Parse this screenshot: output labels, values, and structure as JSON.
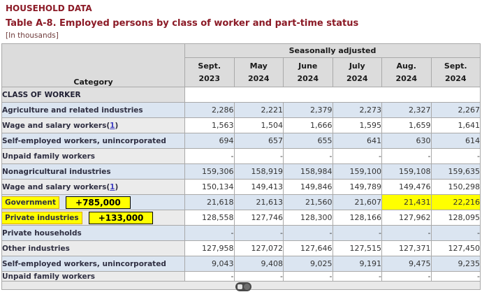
{
  "page": {
    "kicker": "HOUSEHOLD DATA",
    "title": "Table A-8. Employed persons by class of worker and part-time status",
    "units_note": "[In thousands]"
  },
  "colors": {
    "title_maroon": "#8b1a26",
    "highlight_yellow": "#ffff00",
    "row_blue": "#dbe5f1",
    "row_gray_label": "#ebebeb",
    "header_gray": "#dcdcdc",
    "annotation_border": "#000000",
    "footnote_link": "#4040c0",
    "cursor_pill": "#4a4a4a"
  },
  "table": {
    "header": {
      "category_label": "Category",
      "group_label": "Seasonally adjusted",
      "columns": [
        {
          "month": "Sept.",
          "year": "2023"
        },
        {
          "month": "May",
          "year": "2024"
        },
        {
          "month": "June",
          "year": "2024"
        },
        {
          "month": "July",
          "year": "2024"
        },
        {
          "month": "Aug.",
          "year": "2024"
        },
        {
          "month": "Sept.",
          "year": "2024"
        }
      ]
    },
    "rows": [
      {
        "type": "section",
        "label": "CLASS OF WORKER"
      },
      {
        "label": "Agriculture and related industries",
        "indent": 0,
        "shade": "blue",
        "values": [
          "2,286",
          "2,221",
          "2,379",
          "2,273",
          "2,327",
          "2,267"
        ]
      },
      {
        "label": "Wage and salary workers",
        "footnote": "1",
        "indent": 1,
        "shade": "plain",
        "values": [
          "1,563",
          "1,504",
          "1,666",
          "1,595",
          "1,659",
          "1,641"
        ]
      },
      {
        "label": "Self-employed workers, unincorporated",
        "indent": 1,
        "shade": "blue",
        "values": [
          "694",
          "657",
          "655",
          "641",
          "630",
          "614"
        ]
      },
      {
        "label": "Unpaid family workers",
        "indent": 1,
        "shade": "plain",
        "values": [
          "-",
          "-",
          "-",
          "-",
          "-",
          "-"
        ]
      },
      {
        "label": "Nonagricultural industries",
        "indent": 0,
        "shade": "blue",
        "values": [
          "159,306",
          "158,919",
          "158,984",
          "159,100",
          "159,108",
          "159,635"
        ]
      },
      {
        "label": "Wage and salary workers",
        "footnote": "1",
        "indent": 1,
        "shade": "plain",
        "values": [
          "150,134",
          "149,413",
          "149,846",
          "149,789",
          "149,476",
          "150,298"
        ]
      },
      {
        "label": "Government",
        "indent": 2,
        "shade": "blue",
        "label_highlighted": true,
        "annotation": "+785,000",
        "highlight_cols": [
          4,
          5
        ],
        "values": [
          "21,618",
          "21,613",
          "21,560",
          "21,607",
          "21,431",
          "22,216"
        ]
      },
      {
        "label": "Private industries",
        "indent": 2,
        "shade": "plain",
        "label_highlighted": true,
        "annotation": "+133,000",
        "highlight_cols": [
          4,
          5
        ],
        "values": [
          "128,558",
          "127,746",
          "128,300",
          "128,166",
          "127,962",
          "128,095"
        ]
      },
      {
        "label": "Private households",
        "indent": 3,
        "shade": "blue",
        "values": [
          "-",
          "-",
          "-",
          "-",
          "-",
          "-"
        ]
      },
      {
        "label": "Other industries",
        "indent": 3,
        "shade": "plain",
        "values": [
          "127,958",
          "127,072",
          "127,646",
          "127,515",
          "127,371",
          "127,450"
        ]
      },
      {
        "label": "Self-employed workers, unincorporated",
        "indent": 1,
        "shade": "blue",
        "values": [
          "9,043",
          "9,408",
          "9,025",
          "9,191",
          "9,475",
          "9,235"
        ]
      },
      {
        "label": "Unpaid family workers",
        "indent": 0,
        "shade": "plain",
        "compact": true,
        "values": [
          "-",
          "-",
          "-",
          "-",
          "-",
          "-"
        ]
      },
      {
        "type": "partial",
        "label": ""
      }
    ]
  }
}
